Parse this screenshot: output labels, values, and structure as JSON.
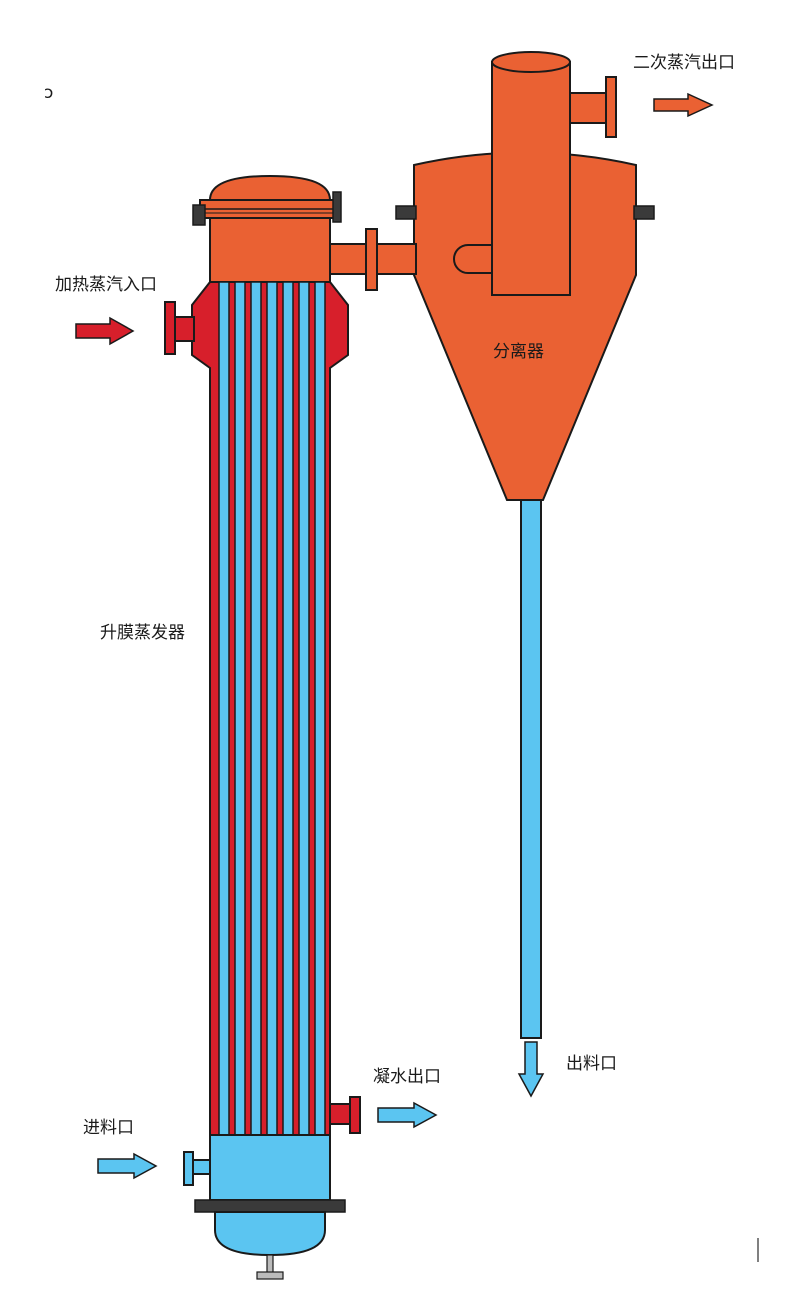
{
  "labels": {
    "secondary_steam_outlet": "二次蒸汽出口",
    "heating_steam_inlet": "加热蒸汽入口",
    "separator": "分离器",
    "rising_film_evaporator": "升膜蒸发器",
    "condensate_outlet": "凝水出口",
    "feed_inlet": "进料口",
    "discharge_outlet": "出料口"
  },
  "colors": {
    "vessel_orange": "#EA6133",
    "steam_red": "#D71F2B",
    "liquid_blue": "#5BC5F1",
    "flange_gray": "#3A3A3A",
    "outline": "#1A1A1A"
  }
}
